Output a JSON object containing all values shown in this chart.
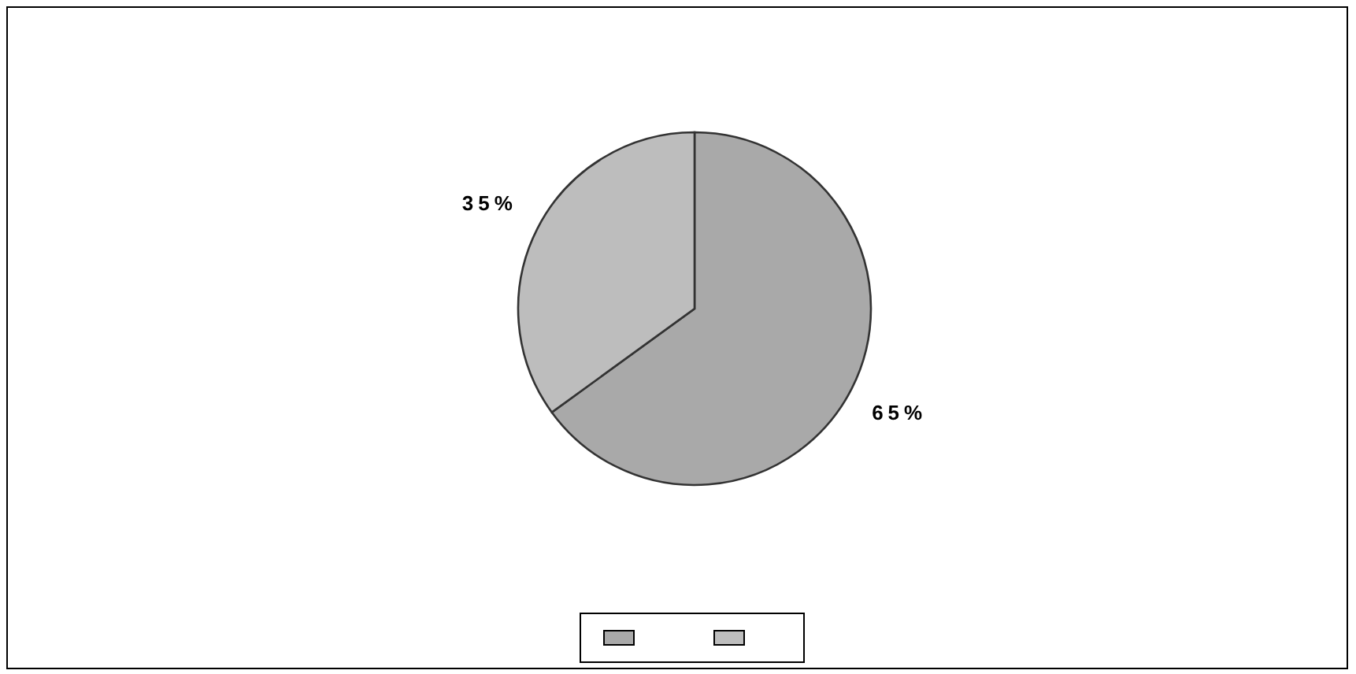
{
  "chart_data": {
    "type": "pie",
    "categories": [
      null,
      null
    ],
    "values": [
      65,
      35
    ],
    "colors": [
      "#a9a9a9",
      "#bdbdbd"
    ],
    "value_labels": [
      "65%",
      "35%"
    ]
  }
}
